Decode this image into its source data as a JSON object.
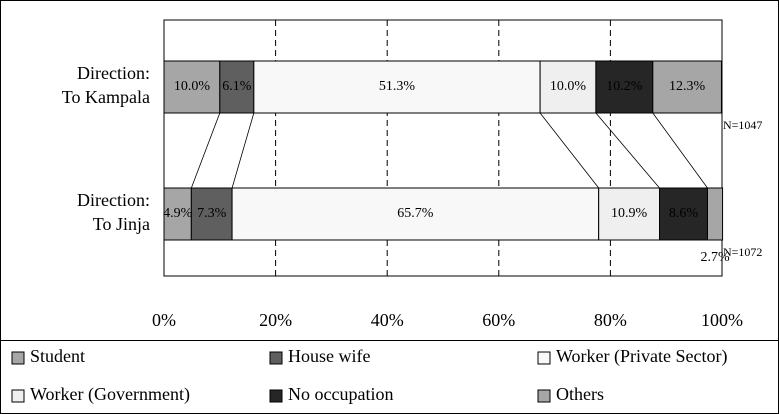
{
  "chart_data": {
    "type": "stacked_bar_horizontal",
    "categories": [
      "Direction: To Kampala",
      "Direction: To Jinja"
    ],
    "series": [
      {
        "name": "Student",
        "color": "#a6a6a6",
        "values": [
          10.0,
          4.9
        ],
        "value_labels": [
          "10.0%",
          "4.9%"
        ]
      },
      {
        "name": "House wife",
        "color": "#5f5f5f",
        "values": [
          6.1,
          7.3
        ],
        "value_labels": [
          "6.1%",
          "7.3%"
        ]
      },
      {
        "name": "Worker (Private Sector)",
        "color": "#f8f8f8",
        "values": [
          51.3,
          65.7
        ],
        "value_labels": [
          "51.3%",
          "65.7%"
        ]
      },
      {
        "name": "Worker (Government)",
        "color": "#efefef",
        "values": [
          10.0,
          10.9
        ],
        "value_labels": [
          "10.0%",
          "10.9%"
        ]
      },
      {
        "name": "No occupation",
        "color": "#262626",
        "values": [
          10.2,
          8.6
        ],
        "value_labels": [
          "10.2%",
          "8.6%"
        ]
      },
      {
        "name": "Others",
        "color": "#a6a6a6",
        "values": [
          12.3,
          2.7
        ],
        "value_labels": [
          "12.3%",
          "2.7%"
        ]
      }
    ],
    "annotations": [
      "N=1047",
      "N=1072"
    ],
    "xlim": [
      0,
      100
    ],
    "xticks": [
      {
        "value": 0,
        "label": "0%"
      },
      {
        "value": 20,
        "label": "20%"
      },
      {
        "value": 40,
        "label": "40%"
      },
      {
        "value": 60,
        "label": "60%"
      },
      {
        "value": 80,
        "label": "80%"
      },
      {
        "value": 100,
        "label": "100%"
      }
    ],
    "grid": true,
    "legend": "bottom"
  }
}
